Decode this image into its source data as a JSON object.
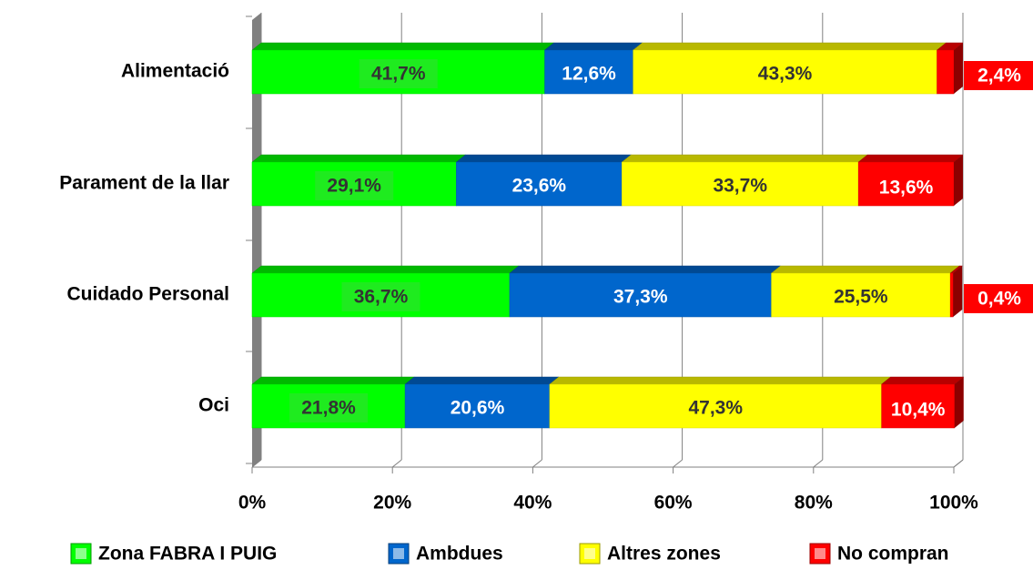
{
  "chart_data": {
    "type": "stacked_bar_horizontal_3d",
    "categories": [
      "Alimentació",
      "Parament de la llar",
      "Cuidado Personal",
      "Oci"
    ],
    "series": [
      {
        "name": "Zona FABRA I PUIG",
        "color": "#00ff00",
        "values": [
          41.7,
          29.1,
          36.7,
          21.8
        ],
        "value_labels": [
          "41,7%",
          "29,1%",
          "36,7%",
          "21,8%"
        ]
      },
      {
        "name": "Ambdues",
        "color": "#0066cc",
        "values": [
          12.6,
          23.6,
          37.3,
          20.6
        ],
        "value_labels": [
          "12,6%",
          "23,6%",
          "37,3%",
          "20,6%"
        ]
      },
      {
        "name": "Altres zones",
        "color": "#ffff00",
        "values": [
          43.3,
          33.7,
          25.5,
          47.3
        ],
        "value_labels": [
          "43,3%",
          "33,7%",
          "25,5%",
          "47,3%"
        ]
      },
      {
        "name": "No compran",
        "color": "#ff0000",
        "values": [
          2.4,
          13.6,
          0.4,
          10.4
        ],
        "value_labels": [
          "2,4%",
          "13,6%",
          "0,4%",
          "10,4%"
        ]
      }
    ],
    "xlim": [
      0,
      100
    ],
    "xticks": [
      {
        "value": 0,
        "label": "0%"
      },
      {
        "value": 20,
        "label": "20%"
      },
      {
        "value": 40,
        "label": "40%"
      },
      {
        "value": 60,
        "label": "60%"
      },
      {
        "value": 80,
        "label": "80%"
      },
      {
        "value": 100,
        "label": "100%"
      }
    ],
    "grid": true,
    "legend": "bottom"
  }
}
